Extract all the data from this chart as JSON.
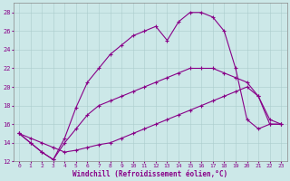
{
  "xlabel": "Windchill (Refroidissement éolien,°C)",
  "bg_color": "#cce8e8",
  "line_color": "#880088",
  "grid_color": "#aacccc",
  "xlim": [
    -0.5,
    23.5
  ],
  "ylim": [
    12,
    29
  ],
  "xticks": [
    0,
    1,
    2,
    3,
    4,
    5,
    6,
    7,
    8,
    9,
    10,
    11,
    12,
    13,
    14,
    15,
    16,
    17,
    18,
    19,
    20,
    21,
    22,
    23
  ],
  "yticks": [
    12,
    14,
    16,
    18,
    20,
    22,
    24,
    26,
    28
  ],
  "curve_upper_x": [
    0,
    1,
    2,
    3,
    4,
    5,
    6,
    7,
    8,
    9,
    10,
    11,
    12,
    13,
    14,
    15,
    16,
    17,
    18,
    19,
    20,
    21,
    22,
    23
  ],
  "curve_upper_y": [
    15.0,
    14.0,
    13.0,
    12.2,
    14.5,
    17.8,
    20.5,
    22.0,
    23.5,
    24.5,
    25.5,
    26.0,
    26.5,
    25.0,
    27.0,
    28.0,
    28.0,
    27.5,
    26.0,
    22.0,
    16.5,
    15.5,
    16.0,
    16.0
  ],
  "curve_mid_x": [
    0,
    1,
    2,
    3,
    4,
    5,
    6,
    7,
    8,
    9,
    10,
    11,
    12,
    13,
    14,
    15,
    16,
    17,
    18,
    19,
    20,
    21,
    22,
    23
  ],
  "curve_mid_y": [
    15.0,
    14.0,
    13.0,
    12.2,
    14.0,
    15.5,
    17.0,
    18.0,
    18.5,
    19.0,
    19.5,
    20.0,
    20.5,
    21.0,
    21.5,
    22.0,
    22.0,
    22.0,
    21.5,
    21.0,
    20.5,
    19.0,
    16.5,
    16.0
  ],
  "curve_low_x": [
    0,
    1,
    2,
    3,
    4,
    5,
    6,
    7,
    8,
    9,
    10,
    11,
    12,
    13,
    14,
    15,
    16,
    17,
    18,
    19,
    20,
    21,
    22,
    23
  ],
  "curve_low_y": [
    15.0,
    14.5,
    14.0,
    13.5,
    13.0,
    13.2,
    13.5,
    13.8,
    14.0,
    14.5,
    15.0,
    15.5,
    16.0,
    16.5,
    17.0,
    17.5,
    18.0,
    18.5,
    19.0,
    19.5,
    20.0,
    19.0,
    16.0,
    16.0
  ]
}
